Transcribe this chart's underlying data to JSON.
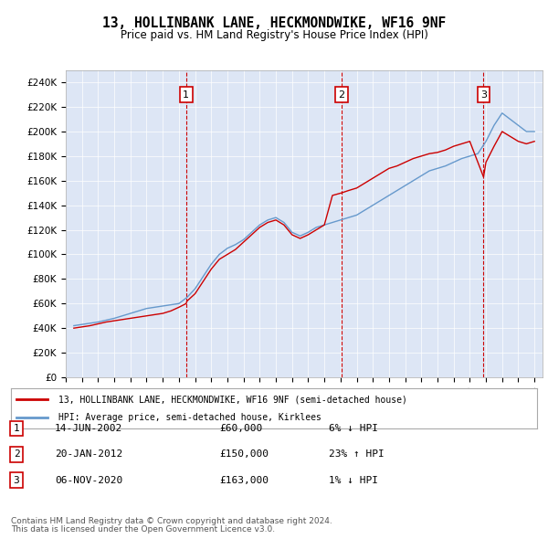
{
  "title": "13, HOLLINBANK LANE, HECKMONDWIKE, WF16 9NF",
  "subtitle": "Price paid vs. HM Land Registry's House Price Index (HPI)",
  "legend_line1": "13, HOLLINBANK LANE, HECKMONDWIKE, WF16 9NF (semi-detached house)",
  "legend_line2": "HPI: Average price, semi-detached house, Kirklees",
  "footer1": "Contains HM Land Registry data © Crown copyright and database right 2024.",
  "footer2": "This data is licensed under the Open Government Licence v3.0.",
  "transactions": [
    {
      "num": 1,
      "date": "14-JUN-2002",
      "price": 60000,
      "pct": "6%",
      "dir": "↓",
      "x": 2002.45
    },
    {
      "num": 2,
      "date": "20-JAN-2012",
      "price": 150000,
      "pct": "23%",
      "dir": "↑",
      "x": 2012.05
    },
    {
      "num": 3,
      "date": "06-NOV-2020",
      "price": 163000,
      "pct": "1%",
      "dir": "↓",
      "x": 2020.85
    }
  ],
  "ylim": [
    0,
    250000
  ],
  "yticks": [
    0,
    20000,
    40000,
    60000,
    80000,
    100000,
    120000,
    140000,
    160000,
    180000,
    200000,
    220000,
    240000
  ],
  "background_color": "#e8eef8",
  "plot_bg": "#dde6f5",
  "red_color": "#cc0000",
  "blue_color": "#6699cc",
  "vline_color": "#cc0000",
  "box_color": "#cc0000",
  "hpi_data": {
    "years": [
      1995.5,
      1996.0,
      1996.5,
      1997.0,
      1997.5,
      1998.0,
      1998.5,
      1999.0,
      1999.5,
      2000.0,
      2000.5,
      2001.0,
      2001.5,
      2002.0,
      2002.5,
      2003.0,
      2003.5,
      2004.0,
      2004.5,
      2005.0,
      2005.5,
      2006.0,
      2006.5,
      2007.0,
      2007.5,
      2008.0,
      2008.5,
      2009.0,
      2009.5,
      2010.0,
      2010.5,
      2011.0,
      2011.5,
      2012.0,
      2012.5,
      2013.0,
      2013.5,
      2014.0,
      2014.5,
      2015.0,
      2015.5,
      2016.0,
      2016.5,
      2017.0,
      2017.5,
      2018.0,
      2018.5,
      2019.0,
      2019.5,
      2020.0,
      2020.5,
      2021.0,
      2021.5,
      2022.0,
      2022.5,
      2023.0,
      2023.5,
      2024.0
    ],
    "values": [
      42000,
      43000,
      44000,
      45000,
      46500,
      48000,
      50000,
      52000,
      54000,
      56000,
      57000,
      58000,
      59000,
      60000,
      65000,
      72000,
      82000,
      92000,
      100000,
      105000,
      108000,
      112000,
      118000,
      124000,
      128000,
      130000,
      126000,
      118000,
      115000,
      118000,
      122000,
      124000,
      126000,
      128000,
      130000,
      132000,
      136000,
      140000,
      144000,
      148000,
      152000,
      156000,
      160000,
      164000,
      168000,
      170000,
      172000,
      175000,
      178000,
      180000,
      182000,
      192000,
      205000,
      215000,
      210000,
      205000,
      200000,
      200000
    ]
  },
  "price_data": {
    "years": [
      1995.5,
      1996.0,
      1996.5,
      1997.0,
      1997.5,
      1998.0,
      1998.5,
      1999.0,
      1999.5,
      2000.0,
      2000.5,
      2001.0,
      2001.5,
      2002.0,
      2002.45,
      2002.5,
      2003.0,
      2003.5,
      2004.0,
      2004.5,
      2005.0,
      2005.5,
      2006.0,
      2006.5,
      2007.0,
      2007.5,
      2008.0,
      2008.5,
      2009.0,
      2009.5,
      2010.0,
      2010.5,
      2011.0,
      2011.5,
      2012.05,
      2012.5,
      2013.0,
      2013.5,
      2014.0,
      2014.5,
      2015.0,
      2015.5,
      2016.0,
      2016.5,
      2017.0,
      2017.5,
      2018.0,
      2018.5,
      2019.0,
      2019.5,
      2020.0,
      2020.85,
      2021.0,
      2021.5,
      2022.0,
      2022.5,
      2023.0,
      2023.5,
      2024.0
    ],
    "values": [
      40000,
      41000,
      42000,
      43500,
      45000,
      46000,
      47000,
      48000,
      49000,
      50000,
      51000,
      52000,
      54000,
      57000,
      60000,
      62000,
      68000,
      78000,
      88000,
      96000,
      100000,
      104000,
      110000,
      116000,
      122000,
      126000,
      128000,
      124000,
      116000,
      113000,
      116000,
      120000,
      124000,
      148000,
      150000,
      152000,
      154000,
      158000,
      162000,
      166000,
      170000,
      172000,
      175000,
      178000,
      180000,
      182000,
      183000,
      185000,
      188000,
      190000,
      192000,
      163000,
      175000,
      188000,
      200000,
      196000,
      192000,
      190000,
      192000
    ]
  }
}
